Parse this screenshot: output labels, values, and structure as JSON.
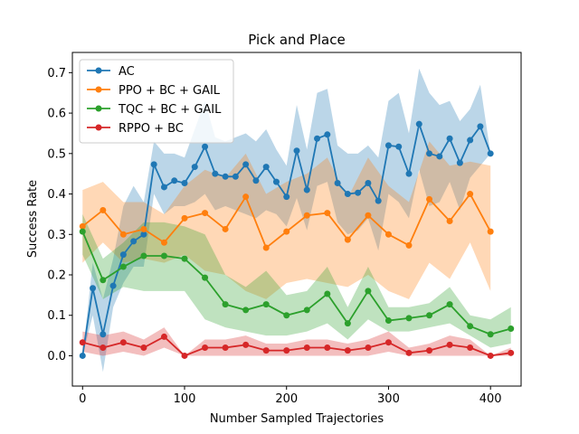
{
  "chart_data": {
    "type": "line",
    "title": "Pick and Place",
    "xlabel": "Number Sampled Trajectories",
    "ylabel": "Success Rate",
    "xlim": [
      -10,
      430
    ],
    "ylim": [
      -0.075,
      0.75
    ],
    "xticks": [
      0,
      100,
      200,
      300,
      400
    ],
    "yticks": [
      0.0,
      0.1,
      0.2,
      0.3,
      0.4,
      0.5,
      0.6,
      0.7
    ],
    "xtick_labels": [
      "0",
      "100",
      "200",
      "300",
      "400"
    ],
    "ytick_labels": [
      "0.0",
      "0.1",
      "0.2",
      "0.3",
      "0.4",
      "0.5",
      "0.6",
      "0.7"
    ],
    "legend_position": "top-left",
    "grid": false,
    "series": [
      {
        "name": "AC",
        "color": "#1f77b4",
        "x": [
          0,
          10,
          20,
          30,
          40,
          50,
          60,
          70,
          80,
          90,
          100,
          110,
          120,
          130,
          140,
          150,
          160,
          170,
          180,
          190,
          200,
          210,
          220,
          230,
          240,
          250,
          260,
          270,
          280,
          290,
          300,
          310,
          320,
          330,
          340,
          350,
          360,
          370,
          380,
          390,
          400
        ],
        "y": [
          0.0,
          0.167,
          0.053,
          0.173,
          0.25,
          0.283,
          0.3,
          0.473,
          0.417,
          0.433,
          0.427,
          0.467,
          0.517,
          0.45,
          0.443,
          0.443,
          0.473,
          0.433,
          0.467,
          0.43,
          0.393,
          0.507,
          0.41,
          0.537,
          0.547,
          0.427,
          0.4,
          0.403,
          0.427,
          0.383,
          0.52,
          0.517,
          0.45,
          0.573,
          0.5,
          0.493,
          0.537,
          0.477,
          0.533,
          0.567,
          0.5
        ],
        "lower": [
          0.0,
          0.1,
          -0.04,
          0.12,
          0.18,
          0.22,
          0.22,
          0.4,
          0.35,
          0.37,
          0.37,
          0.38,
          0.4,
          0.36,
          0.37,
          0.36,
          0.35,
          0.34,
          0.36,
          0.35,
          0.32,
          0.39,
          0.31,
          0.42,
          0.43,
          0.33,
          0.3,
          0.31,
          0.34,
          0.26,
          0.4,
          0.38,
          0.34,
          0.46,
          0.37,
          0.38,
          0.43,
          0.36,
          0.44,
          0.47,
          0.5
        ],
        "upper": [
          0.0,
          0.23,
          0.14,
          0.24,
          0.37,
          0.42,
          0.38,
          0.53,
          0.5,
          0.5,
          0.49,
          0.56,
          0.63,
          0.54,
          0.53,
          0.54,
          0.55,
          0.53,
          0.56,
          0.51,
          0.47,
          0.62,
          0.51,
          0.65,
          0.66,
          0.52,
          0.5,
          0.5,
          0.52,
          0.49,
          0.63,
          0.65,
          0.55,
          0.71,
          0.65,
          0.62,
          0.63,
          0.58,
          0.61,
          0.67,
          0.5
        ]
      },
      {
        "name": "PPO + BC + GAIL",
        "color": "#ff7f0e",
        "x": [
          0,
          20,
          40,
          60,
          80,
          100,
          120,
          140,
          160,
          180,
          200,
          220,
          240,
          260,
          280,
          300,
          320,
          340,
          360,
          380,
          400,
          420
        ],
        "y": [
          0.32,
          0.36,
          0.3,
          0.313,
          0.28,
          0.34,
          0.353,
          0.313,
          0.393,
          0.267,
          0.307,
          0.347,
          0.353,
          0.287,
          0.347,
          0.3,
          0.273,
          0.387,
          0.333,
          0.4,
          0.307,
          null
        ],
        "lower": [
          0.23,
          0.28,
          0.23,
          0.24,
          0.23,
          0.25,
          0.21,
          0.2,
          0.16,
          0.14,
          0.18,
          0.19,
          0.18,
          0.17,
          0.2,
          0.16,
          0.14,
          0.23,
          0.19,
          0.28,
          0.16,
          null
        ],
        "upper": [
          0.41,
          0.43,
          0.38,
          0.38,
          0.35,
          0.42,
          0.46,
          0.44,
          0.5,
          0.4,
          0.43,
          0.45,
          0.49,
          0.39,
          0.49,
          0.42,
          0.38,
          0.53,
          0.47,
          0.48,
          0.47,
          null
        ]
      },
      {
        "name": "TQC + BC + GAIL",
        "color": "#2ca02c",
        "x": [
          0,
          20,
          40,
          60,
          80,
          100,
          120,
          140,
          160,
          180,
          200,
          220,
          240,
          260,
          280,
          300,
          320,
          340,
          360,
          380,
          400,
          420
        ],
        "y": [
          0.307,
          0.187,
          0.22,
          0.247,
          0.247,
          0.24,
          0.193,
          0.127,
          0.113,
          0.127,
          0.1,
          0.113,
          0.153,
          0.08,
          0.16,
          0.087,
          0.093,
          0.1,
          0.127,
          0.073,
          0.053,
          0.067
        ],
        "lower": [
          0.25,
          0.14,
          0.17,
          0.16,
          0.16,
          0.16,
          0.09,
          0.07,
          0.06,
          0.05,
          0.05,
          0.06,
          0.08,
          0.04,
          0.09,
          0.06,
          0.06,
          0.07,
          0.08,
          0.05,
          0.02,
          0.03
        ],
        "upper": [
          0.35,
          0.24,
          0.28,
          0.33,
          0.33,
          0.32,
          0.3,
          0.2,
          0.17,
          0.21,
          0.15,
          0.16,
          0.22,
          0.12,
          0.22,
          0.12,
          0.12,
          0.13,
          0.17,
          0.1,
          0.09,
          0.12
        ]
      },
      {
        "name": "RPPO + BC",
        "color": "#d62728",
        "x": [
          0,
          20,
          40,
          60,
          80,
          100,
          120,
          140,
          160,
          180,
          200,
          220,
          240,
          260,
          280,
          300,
          320,
          340,
          360,
          380,
          400,
          420
        ],
        "y": [
          0.033,
          0.02,
          0.033,
          0.02,
          0.047,
          0.0,
          0.02,
          0.02,
          0.027,
          0.013,
          0.013,
          0.02,
          0.02,
          0.013,
          0.02,
          0.033,
          0.007,
          0.013,
          0.027,
          0.02,
          0.0,
          0.007
        ],
        "lower": [
          0.01,
          0.0,
          0.01,
          0.0,
          0.02,
          0.0,
          0.0,
          0.0,
          0.0,
          0.0,
          0.0,
          0.0,
          0.0,
          0.0,
          0.0,
          0.01,
          0.0,
          0.0,
          0.0,
          0.0,
          0.0,
          0.0
        ],
        "upper": [
          0.06,
          0.05,
          0.06,
          0.04,
          0.07,
          0.0,
          0.04,
          0.04,
          0.05,
          0.03,
          0.03,
          0.04,
          0.04,
          0.03,
          0.04,
          0.06,
          0.02,
          0.03,
          0.05,
          0.04,
          0.0,
          0.02
        ]
      }
    ]
  }
}
